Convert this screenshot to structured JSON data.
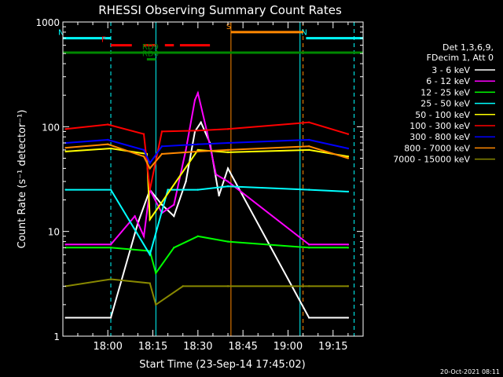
{
  "chart_data": {
    "type": "line",
    "title": "RHESSI Observing Summary Count Rates",
    "xlabel": "Start Time (23-Sep-14 17:45:02)",
    "ylabel": "Count Rate (s⁻¹ detector⁻¹)",
    "ylog": true,
    "ylim": [
      1,
      1000
    ],
    "xlim": [
      "17:45:02",
      "19:25:00"
    ],
    "x_ticks": [
      "18:00",
      "18:15",
      "18:30",
      "18:45",
      "19:00",
      "19:15"
    ],
    "y_ticks": [
      "1",
      "10",
      "100",
      "1000"
    ],
    "legend": {
      "placement": "right",
      "header": [
        "Det 1,3,6,9,",
        "FDecim 1, Att 0"
      ]
    },
    "series": [
      {
        "name": "3 - 6 keV",
        "color": "#ffffff",
        "x": [
          "17:46",
          "18:01",
          "18:10",
          "18:14",
          "18:18",
          "18:22",
          "18:26",
          "18:29",
          "18:31",
          "18:34",
          "18:37",
          "18:40",
          "19:07",
          "19:20"
        ],
        "values": [
          1.5,
          1.5,
          12,
          25,
          18,
          14,
          30,
          90,
          110,
          70,
          22,
          40,
          1.5,
          1.5
        ]
      },
      {
        "name": "6 - 12 keV",
        "color": "#ff00ff",
        "x": [
          "17:46",
          "18:01",
          "18:09",
          "18:12",
          "18:14",
          "18:18",
          "18:22",
          "18:26",
          "18:29",
          "18:30",
          "18:33",
          "18:36",
          "18:40",
          "19:07",
          "19:20"
        ],
        "values": [
          7.5,
          7.5,
          14,
          9,
          25,
          15,
          18,
          60,
          180,
          210,
          90,
          35,
          30,
          7.5,
          7.5
        ]
      },
      {
        "name": "12 - 25 keV",
        "color": "#00ff00",
        "x": [
          "17:46",
          "18:01",
          "18:14",
          "18:16",
          "18:22",
          "18:30",
          "18:40",
          "19:07",
          "19:20"
        ],
        "values": [
          7,
          7,
          6.5,
          4,
          7,
          9,
          8,
          7,
          7
        ]
      },
      {
        "name": "25 - 50 keV",
        "color": "#00ffff",
        "x": [
          "17:46",
          "18:01",
          "18:14",
          "18:20",
          "18:30",
          "18:40",
          "19:07",
          "19:20"
        ],
        "values": [
          25,
          25,
          6,
          25,
          25,
          27,
          25,
          24
        ]
      },
      {
        "name": "50 - 100 keV",
        "color": "#ffff00",
        "x": [
          "17:46",
          "18:01",
          "18:13",
          "18:14",
          "18:30",
          "18:40",
          "19:07",
          "19:20"
        ],
        "values": [
          58,
          62,
          55,
          13,
          60,
          57,
          60,
          52
        ]
      },
      {
        "name": "100 - 300 keV",
        "color": "#ff0000",
        "x": [
          "17:46",
          "18:00",
          "18:12",
          "18:14",
          "18:18",
          "18:30",
          "18:40",
          "19:07",
          "19:20"
        ],
        "values": [
          95,
          105,
          85,
          25,
          90,
          92,
          95,
          110,
          85
        ]
      },
      {
        "name": "300 - 800 keV",
        "color": "#0000ff",
        "x": [
          "17:46",
          "18:00",
          "18:12",
          "18:14",
          "18:18",
          "18:30",
          "18:40",
          "19:07",
          "19:20"
        ],
        "values": [
          70,
          75,
          60,
          45,
          65,
          68,
          70,
          75,
          62
        ]
      },
      {
        "name": "800 - 7000 keV",
        "color": "#ff8800",
        "x": [
          "17:46",
          "18:00",
          "18:12",
          "18:14",
          "18:18",
          "18:30",
          "18:40",
          "19:07",
          "19:20"
        ],
        "values": [
          63,
          68,
          52,
          40,
          55,
          58,
          60,
          65,
          50
        ]
      },
      {
        "name": "7000 - 15000 keV",
        "color": "#888800",
        "x": [
          "17:46",
          "18:01",
          "18:14",
          "18:16",
          "18:25",
          "18:40",
          "19:07",
          "19:20"
        ],
        "values": [
          3,
          3.5,
          3.2,
          2,
          3,
          3,
          3,
          3
        ]
      }
    ],
    "flags": [
      {
        "label": "N",
        "color": "#00ffff",
        "x_start": "17:45:02",
        "x_end": "18:01",
        "level": 700
      },
      {
        "label": "N",
        "color": "#00ffff",
        "x_start": "19:06",
        "x_end": "19:25",
        "level": 700
      },
      {
        "label": "S",
        "color": "#ff8800",
        "x_start": "18:41",
        "x_end": "19:05",
        "level": 800
      },
      {
        "label": "F",
        "color": "#ff0000",
        "segments": [
          [
            "18:01",
            "18:08"
          ],
          [
            "18:12",
            "18:16"
          ],
          [
            "18:19",
            "18:22"
          ],
          [
            "18:24",
            "18:34"
          ]
        ],
        "level": 600
      },
      {
        "label": "RD6",
        "color": "#008800",
        "x_start": "18:13",
        "x_end": "18:16",
        "level": 440
      },
      {
        "label": "RD9",
        "color": "#008800",
        "x_start": "18:13",
        "x_end": "18:13",
        "level": 510
      },
      {
        "label": "",
        "color": "#008800",
        "x_start": "17:45:02",
        "x_end": "19:25",
        "level": 510
      }
    ],
    "vlines": [
      {
        "color": "#00ffff",
        "x": "18:01",
        "style": "dashed"
      },
      {
        "color": "#00ffff",
        "x": "18:16",
        "style": "solid"
      },
      {
        "color": "#ff8800",
        "x": "18:41",
        "style": "solid"
      },
      {
        "color": "#00ffff",
        "x": "19:04",
        "style": "solid"
      },
      {
        "color": "#ff8800",
        "x": "19:05",
        "style": "dashed"
      },
      {
        "color": "#00ffff",
        "x": "19:22",
        "style": "dashed"
      },
      {
        "color": "#00ffff",
        "x": "17:45:02",
        "style": "solid"
      }
    ]
  },
  "footer": {
    "timestamp": "20-Oct-2021 08:11"
  }
}
